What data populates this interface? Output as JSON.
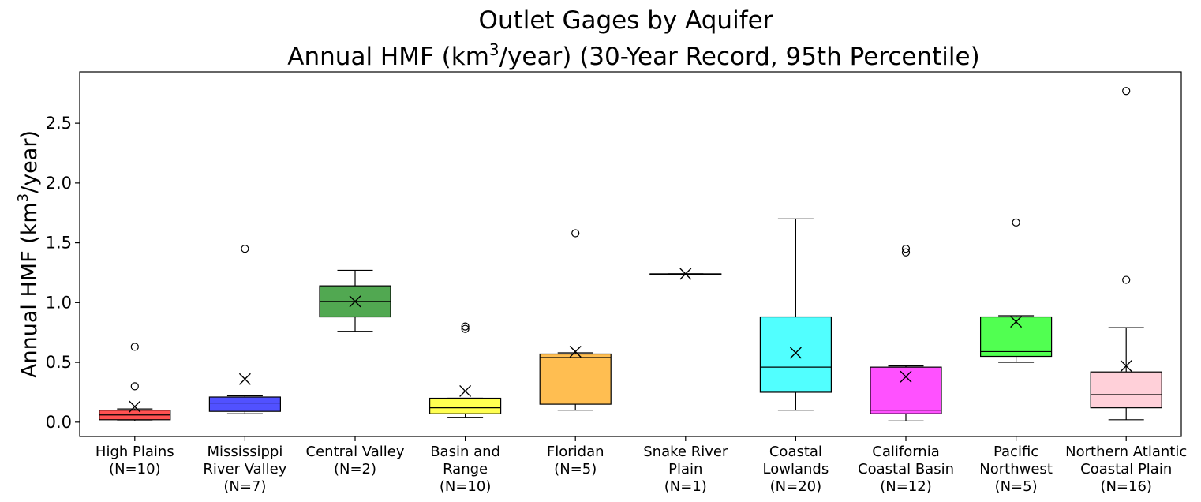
{
  "chart_data": {
    "type": "box",
    "title_line1": "Outlet Gages by Aquifer",
    "title_line2_pre": "Annual HMF (km",
    "title_line2_sup": "3",
    "title_line2_post": "/year) (30-Year Record, 95th Percentile)",
    "ylabel_pre": "Annual HMF (km",
    "ylabel_sup": "3",
    "ylabel_post": "/year)",
    "xlabel": "",
    "ylim": [
      -0.12,
      2.93
    ],
    "yticks": [
      {
        "value": 0.0,
        "label": "0.0"
      },
      {
        "value": 0.5,
        "label": "0.5"
      },
      {
        "value": 1.0,
        "label": "1.0"
      },
      {
        "value": 1.5,
        "label": "1.5"
      },
      {
        "value": 2.0,
        "label": "2.0"
      },
      {
        "value": 2.5,
        "label": "2.5"
      }
    ],
    "grid": false,
    "legend": "none",
    "mean_marker": "x",
    "boxes": [
      {
        "label_lines": [
          "High Plains",
          "(N=10)"
        ],
        "color": "#ff3333",
        "whisker_low": 0.01,
        "q1": 0.02,
        "median": 0.06,
        "q3": 0.1,
        "whisker_high": 0.11,
        "mean": 0.13,
        "outliers": [
          0.3,
          0.63
        ]
      },
      {
        "label_lines": [
          "Mississippi",
          "River Valley",
          "(N=7)"
        ],
        "color": "#3333ff",
        "whisker_low": 0.07,
        "q1": 0.09,
        "median": 0.16,
        "q3": 0.21,
        "whisker_high": 0.22,
        "mean": 0.36,
        "outliers": [
          1.45
        ]
      },
      {
        "label_lines": [
          "Central Valley",
          "(N=2)"
        ],
        "color": "#339933",
        "whisker_low": 0.76,
        "q1": 0.88,
        "median": 1.01,
        "q3": 1.14,
        "whisker_high": 1.27,
        "mean": 1.01,
        "outliers": []
      },
      {
        "label_lines": [
          "Basin and",
          "Range",
          "(N=10)"
        ],
        "color": "#ffff33",
        "whisker_low": 0.04,
        "q1": 0.07,
        "median": 0.12,
        "q3": 0.2,
        "whisker_high": 0.2,
        "mean": 0.26,
        "outliers": [
          0.78,
          0.8
        ]
      },
      {
        "label_lines": [
          "Floridan",
          "(N=5)"
        ],
        "color": "#ffb333",
        "whisker_low": 0.1,
        "q1": 0.15,
        "median": 0.54,
        "q3": 0.57,
        "whisker_high": 0.58,
        "mean": 0.59,
        "outliers": [
          1.58
        ]
      },
      {
        "label_lines": [
          "Snake River",
          "Plain",
          "(N=1)"
        ],
        "color": "#ffa500",
        "whisker_low": 1.24,
        "q1": 1.24,
        "median": 1.24,
        "q3": 1.24,
        "whisker_high": 1.24,
        "mean": 1.24,
        "outliers": []
      },
      {
        "label_lines": [
          "Coastal",
          "Lowlands",
          "(N=20)"
        ],
        "color": "#33ffff",
        "whisker_low": 0.1,
        "q1": 0.25,
        "median": 0.46,
        "q3": 0.88,
        "whisker_high": 1.7,
        "mean": 0.58,
        "outliers": []
      },
      {
        "label_lines": [
          "California",
          "Coastal Basin",
          "(N=12)"
        ],
        "color": "#ff33ff",
        "whisker_low": 0.01,
        "q1": 0.07,
        "median": 0.1,
        "q3": 0.46,
        "whisker_high": 0.47,
        "mean": 0.38,
        "outliers": [
          1.42,
          1.45
        ]
      },
      {
        "label_lines": [
          "Pacific",
          "Northwest",
          "(N=5)"
        ],
        "color": "#33ff33",
        "whisker_low": 0.5,
        "q1": 0.55,
        "median": 0.59,
        "q3": 0.88,
        "whisker_high": 0.89,
        "mean": 0.84,
        "outliers": [
          1.67
        ]
      },
      {
        "label_lines": [
          "Northern Atlantic",
          "Coastal Plain",
          "(N=16)"
        ],
        "color": "#ffc8d2",
        "whisker_low": 0.02,
        "q1": 0.12,
        "median": 0.23,
        "q3": 0.42,
        "whisker_high": 0.79,
        "mean": 0.47,
        "outliers": [
          1.19,
          2.77
        ]
      }
    ]
  }
}
